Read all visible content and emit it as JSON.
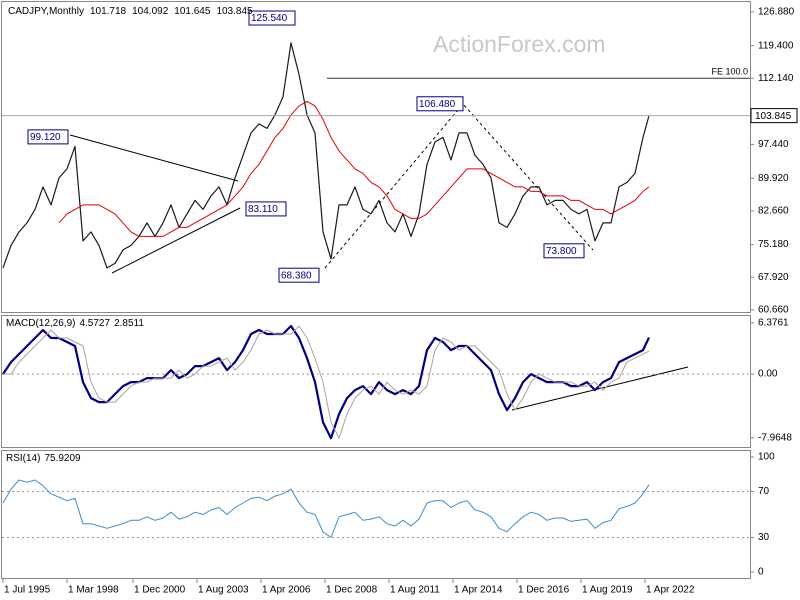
{
  "chart_data": {
    "type": "line",
    "title": "CADJPY,Monthly",
    "ohlc_header": [
      101.718,
      104.092,
      101.645
    ],
    "watermark": "ActionForex.com",
    "x": [
      "1995-07",
      "1995-11",
      "1996-03",
      "1996-07",
      "1996-11",
      "1997-03",
      "1997-07",
      "1997-11",
      "1998-03",
      "1998-07",
      "1998-11",
      "1999-03",
      "1999-07",
      "1999-11",
      "2000-03",
      "2000-07",
      "2000-11",
      "2001-03",
      "2001-07",
      "2001-11",
      "2002-03",
      "2002-07",
      "2002-11",
      "2003-03",
      "2003-07",
      "2003-11",
      "2004-03",
      "2004-07",
      "2004-11",
      "2005-03",
      "2005-07",
      "2005-11",
      "2006-03",
      "2006-07",
      "2006-11",
      "2007-03",
      "2007-07",
      "2007-11",
      "2008-03",
      "2008-07",
      "2008-11",
      "2009-03",
      "2009-07",
      "2009-11",
      "2010-03",
      "2010-07",
      "2010-11",
      "2011-03",
      "2011-07",
      "2011-11",
      "2012-03",
      "2012-07",
      "2012-11",
      "2013-03",
      "2013-07",
      "2013-11",
      "2014-03",
      "2014-07",
      "2014-11",
      "2015-03",
      "2015-07",
      "2015-11",
      "2016-03",
      "2016-07",
      "2016-11",
      "2017-03",
      "2017-07",
      "2017-11",
      "2018-03",
      "2018-07",
      "2018-11",
      "2019-03",
      "2019-07",
      "2019-11",
      "2020-03",
      "2020-07",
      "2020-11",
      "2021-03",
      "2021-07",
      "2021-11",
      "2022-03",
      "2022-06"
    ],
    "xlim": [
      "1995-06",
      "2026-09"
    ],
    "xticks": [
      {
        "value": "1995-07",
        "label": "1 Jul 1995"
      },
      {
        "value": "1998-03",
        "label": "1 Mar 1998"
      },
      {
        "value": "2000-12",
        "label": "1 Dec 2000"
      },
      {
        "value": "2003-08",
        "label": "1 Aug 2003"
      },
      {
        "value": "2006-04",
        "label": "1 Apr 2006"
      },
      {
        "value": "2008-12",
        "label": "1 Dec 2008"
      },
      {
        "value": "2011-08",
        "label": "1 Aug 2011"
      },
      {
        "value": "2014-04",
        "label": "1 Apr 2014"
      },
      {
        "value": "2016-12",
        "label": "1 Dec 2016"
      },
      {
        "value": "2019-08",
        "label": "1 Aug 2019"
      },
      {
        "value": "2022-04",
        "label": "1 Apr 2022"
      }
    ],
    "panels": [
      {
        "ylim": [
          60.2,
          129.1
        ],
        "yticks": [
          {
            "value": 126.88,
            "label": "126.880"
          },
          {
            "value": 119.4,
            "label": "119.400"
          },
          {
            "value": 112.14,
            "label": "112.140"
          },
          {
            "value": 97.44,
            "label": "97.440"
          },
          {
            "value": 89.92,
            "label": "89.920"
          },
          {
            "value": 82.66,
            "label": "82.660"
          },
          {
            "value": 75.18,
            "label": "75.180"
          },
          {
            "value": 67.92,
            "label": "67.920"
          },
          {
            "value": 60.66,
            "label": "60.660"
          }
        ],
        "series": [
          {
            "name": "Close",
            "color": "#1a1a1a",
            "width": 1.2,
            "values": [
              70,
              75,
              78,
              80,
              83,
              88,
              84,
              90,
              92,
              97,
              76,
              78,
              75,
              70,
              71,
              74,
              75,
              77,
              80,
              77,
              80,
              84,
              79,
              82,
              85,
              83,
              86,
              88,
              84,
              90,
              95,
              100,
              102,
              101,
              104,
              108,
              120,
              113,
              104,
              100,
              78,
              72,
              84,
              84,
              88,
              83,
              82,
              85,
              80,
              78,
              82,
              77,
              82,
              93,
              98,
              99,
              94,
              100,
              100,
              95,
              93,
              90,
              80,
              79,
              82,
              86,
              88,
              88,
              84,
              85,
              85,
              83,
              82,
              83,
              76,
              80,
              80,
              88,
              89,
              91,
              99,
              103.845
            ]
          },
          {
            "name": "MA",
            "color": "#e00000",
            "width": 1,
            "values": [
              null,
              null,
              null,
              null,
              null,
              null,
              null,
              80,
              82,
              83,
              84,
              84,
              84,
              83,
              82,
              80,
              78,
              77,
              77,
              77,
              77,
              78,
              79,
              79,
              80,
              81,
              82,
              83,
              84,
              86,
              88,
              91,
              93,
              96,
              99,
              101,
              104,
              106,
              107,
              106,
              103,
              99,
              96,
              94,
              92,
              91,
              89,
              88,
              86,
              83,
              82,
              81,
              81,
              82,
              84,
              86,
              88,
              90,
              92,
              92,
              92,
              91,
              90,
              89,
              88,
              88,
              87,
              87,
              86,
              86,
              86,
              85,
              85,
              84,
              83,
              83,
              82,
              83,
              84,
              85,
              87,
              88
            ]
          }
        ],
        "annotations": [
          {
            "text": "125.540",
            "x": "2007-11",
            "value": 125.54
          },
          {
            "text": "99.120",
            "x": "1998-08",
            "value": 99.12
          },
          {
            "text": "106.480",
            "x": "2014-10",
            "value": 106.48
          },
          {
            "text": "83.110",
            "x": "2005-06",
            "value": 83.11
          },
          {
            "text": "68.380",
            "x": "2009-01",
            "value": 68.38
          },
          {
            "text": "73.800",
            "x": "2020-03",
            "value": 73.8
          }
        ],
        "fe_line": {
          "label": "FE 100.0",
          "value": 112.15,
          "from": "2009-01"
        }
      },
      {
        "title": "MACD(12,26,9)",
        "ylim": [
          -9.1,
          7.25
        ],
        "yticks": [
          {
            "value": 6.3761
          },
          {
            "value": 0,
            "label": "0.00"
          },
          {
            "value": -7.9648
          }
        ],
        "levels": [
          0
        ],
        "series": [
          {
            "name": "MACD",
            "color": "#000080",
            "width": 2.2,
            "values": [
              0,
              1.5,
              2.5,
              3.5,
              4.5,
              5.5,
              4.5,
              4.5,
              4.0,
              3.5,
              -1.0,
              -3.0,
              -3.5,
              -3.5,
              -2.5,
              -1.5,
              -1.0,
              -1.0,
              -0.5,
              -0.5,
              -0.5,
              0.5,
              -0.5,
              0,
              1.0,
              1.0,
              1.5,
              2.0,
              0.5,
              1.5,
              3.0,
              5.0,
              5.5,
              5.0,
              5.0,
              5.0,
              6.0,
              4.5,
              2.0,
              -1.0,
              -6.0,
              -8.0,
              -5.0,
              -3.0,
              -2.0,
              -1.5,
              -2.5,
              -1.0,
              -2.0,
              -2.5,
              -2.0,
              -2.5,
              -1.5,
              3.0,
              4.5,
              4.0,
              3.0,
              3.5,
              3.5,
              2.5,
              1.5,
              0.5,
              -2.5,
              -4.5,
              -3.0,
              -1.0,
              0,
              -0.5,
              -1.0,
              -1.0,
              -1.0,
              -1.5,
              -1.5,
              -1.0,
              -2.0,
              -1.0,
              -0.5,
              1.5,
              2.0,
              2.5,
              3.0,
              4.5727
            ]
          },
          {
            "name": "Signal",
            "color": "#b0a0a0",
            "width": 1,
            "values": [
              0,
              0,
              1.5,
              2.5,
              3.5,
              4.5,
              5.5,
              4.5,
              4.5,
              4.0,
              3.5,
              -1.0,
              -3.0,
              -3.5,
              -3.5,
              -2.5,
              -1.5,
              -1.0,
              -1.0,
              -0.5,
              -0.5,
              -0.5,
              0.5,
              -0.5,
              0,
              1.0,
              1.0,
              1.5,
              2.0,
              0.5,
              1.5,
              3.0,
              5.0,
              5.5,
              5.0,
              5.0,
              5.0,
              6.0,
              4.5,
              2.0,
              -1.0,
              -6.0,
              -8.0,
              -5.0,
              -3.0,
              -2.0,
              -1.5,
              -2.5,
              -1.0,
              -2.0,
              -2.5,
              -2.0,
              -2.5,
              -1.5,
              3.0,
              4.5,
              4.0,
              3.0,
              3.5,
              3.5,
              2.5,
              1.5,
              0.5,
              -2.5,
              -4.5,
              -3.0,
              -1.0,
              0,
              -0.5,
              -1.0,
              -1.0,
              -1.0,
              -1.5,
              -1.5,
              -1.0,
              -2.0,
              -1.0,
              -0.5,
              1.5,
              2.0,
              2.5,
              2.8511
            ]
          }
        ]
      },
      {
        "title": "RSI(14)",
        "ylim": [
          -5.2,
          105.2
        ],
        "yticks": [
          100,
          70,
          30,
          0
        ],
        "levels": [
          70,
          30
        ],
        "series": [
          {
            "name": "RSI",
            "color": "#3c8dc8",
            "width": 1,
            "values": [
              60,
              72,
              80,
              78,
              80,
              75,
              68,
              65,
              62,
              64,
              42,
              42,
              40,
              38,
              40,
              42,
              45,
              45,
              48,
              45,
              47,
              52,
              46,
              48,
              52,
              50,
              54,
              56,
              50,
              56,
              60,
              64,
              65,
              62,
              66,
              68,
              72,
              60,
              52,
              50,
              35,
              30,
              48,
              50,
              52,
              45,
              46,
              48,
              42,
              40,
              45,
              40,
              46,
              60,
              62,
              62,
              56,
              60,
              62,
              54,
              52,
              48,
              38,
              35,
              42,
              48,
              52,
              50,
              45,
              47,
              47,
              44,
              45,
              46,
              38,
              43,
              45,
              55,
              57,
              60,
              68,
              75.9209
            ]
          }
        ]
      }
    ]
  }
}
